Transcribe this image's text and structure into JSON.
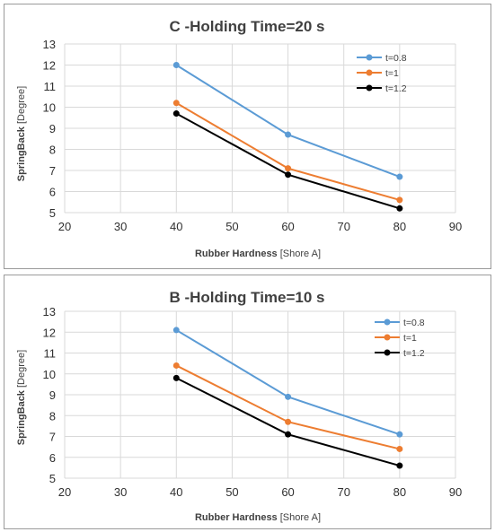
{
  "chart_data": [
    {
      "type": "line",
      "title": "C -Holding Time=20 s",
      "xlabel": "Rubber Hardness",
      "xlabel_unit": "[Shore A]",
      "ylabel": "SpringBack",
      "ylabel_unit": "[Degree]",
      "xlim": [
        20,
        90
      ],
      "ylim": [
        5,
        13
      ],
      "xticks": [
        20,
        30,
        40,
        50,
        60,
        70,
        80,
        90
      ],
      "yticks": [
        5,
        6,
        7,
        8,
        9,
        10,
        11,
        12,
        13
      ],
      "x": [
        40,
        60,
        80
      ],
      "grid": true,
      "legend": "top-right",
      "series": [
        {
          "name": "t=0.8",
          "values": [
            12.0,
            8.7,
            6.7
          ],
          "color": "#5b9bd5"
        },
        {
          "name": "t=1",
          "values": [
            10.2,
            7.1,
            5.6
          ],
          "color": "#ed7d31"
        },
        {
          "name": "t=1.2",
          "values": [
            9.7,
            6.8,
            5.2
          ],
          "color": "#000000"
        }
      ]
    },
    {
      "type": "line",
      "title": "B -Holding Time=10 s",
      "xlabel": "Rubber Hardness",
      "xlabel_unit": "[Shore A]",
      "ylabel": "SpringBack",
      "ylabel_unit": "[Degree]",
      "xlim": [
        20,
        90
      ],
      "ylim": [
        5,
        13
      ],
      "xticks": [
        20,
        30,
        40,
        50,
        60,
        70,
        80,
        90
      ],
      "yticks": [
        5,
        6,
        7,
        8,
        9,
        10,
        11,
        12,
        13
      ],
      "x": [
        40,
        60,
        80
      ],
      "grid": true,
      "legend": "top-right",
      "series": [
        {
          "name": "t=0.8",
          "values": [
            12.1,
            8.9,
            7.1
          ],
          "color": "#5b9bd5"
        },
        {
          "name": "t=1",
          "values": [
            10.4,
            7.7,
            6.4
          ],
          "color": "#ed7d31"
        },
        {
          "name": "t=1.2",
          "values": [
            9.8,
            7.1,
            5.6
          ],
          "color": "#000000"
        }
      ]
    }
  ]
}
